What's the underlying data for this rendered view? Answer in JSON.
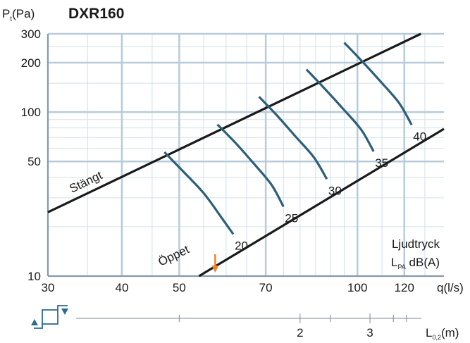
{
  "chart_data": {
    "type": "line",
    "title": "DXR160",
    "ylabel_main": "P",
    "ylabel_sub": "t",
    "ylabel_unit": "(Pa)",
    "xlabel": "q(l/s)",
    "xscale": "log",
    "yscale": "log",
    "xlim": [
      30,
      140
    ],
    "ylim": [
      10,
      300
    ],
    "x_ticks": [
      30,
      40,
      50,
      70,
      100,
      120
    ],
    "y_ticks": [
      10,
      50,
      100,
      200,
      300
    ],
    "grid": true,
    "boundary_lines": [
      {
        "name": "Stängt",
        "points": [
          [
            30,
            24.5
          ],
          [
            128,
            300
          ]
        ]
      },
      {
        "name": "Öppet",
        "points": [
          [
            54,
            10
          ],
          [
            140,
            79
          ]
        ]
      }
    ],
    "sound_curves": [
      {
        "label": "20",
        "points": [
          [
            47.2,
            57
          ],
          [
            50.6,
            44
          ],
          [
            55,
            32
          ],
          [
            58.8,
            23
          ],
          [
            61.7,
            18
          ]
        ]
      },
      {
        "label": "25",
        "points": [
          [
            58,
            84
          ],
          [
            62.2,
            65
          ],
          [
            67,
            48
          ],
          [
            71.6,
            36
          ],
          [
            75,
            26.5
          ]
        ]
      },
      {
        "label": "30",
        "points": [
          [
            68.2,
            124
          ],
          [
            73,
            96
          ],
          [
            78.6,
            71
          ],
          [
            84.4,
            53
          ],
          [
            88.8,
            39
          ]
        ]
      },
      {
        "label": "35",
        "points": [
          [
            82,
            182
          ],
          [
            87.7,
            141
          ],
          [
            94.5,
            105
          ],
          [
            101.5,
            78
          ],
          [
            106.5,
            57.5
          ]
        ]
      },
      {
        "label": "40",
        "points": [
          [
            95,
            265
          ],
          [
            101.7,
            205
          ],
          [
            109.5,
            153
          ],
          [
            117.5,
            114
          ],
          [
            123.5,
            83.5
          ]
        ]
      }
    ],
    "annotations": {
      "closed": "Stängt",
      "open": "Öppet",
      "legend_line1": "Ljudtryck",
      "legend_L": "L",
      "legend_sub": "PA",
      "legend_unit": "dB(A)"
    },
    "secondary_axis": {
      "label_main": "L",
      "label_sub": "0,2",
      "label_unit": "(m)",
      "ticks": [
        {
          "q": 80,
          "label": "2"
        },
        {
          "q": 105,
          "label": "3"
        }
      ],
      "minor_ticks": [
        50,
        90,
        115,
        121
      ]
    },
    "colors": {
      "curves": "#2b5f7a",
      "boundary": "#1a1a1a",
      "grid_major": "#b7cbd9",
      "grid_minor": "#d2e0ea",
      "title": "#23577a",
      "marker": "#f0822a",
      "icon": "#2b6c93"
    },
    "marker_arrow_q": 57.5
  }
}
